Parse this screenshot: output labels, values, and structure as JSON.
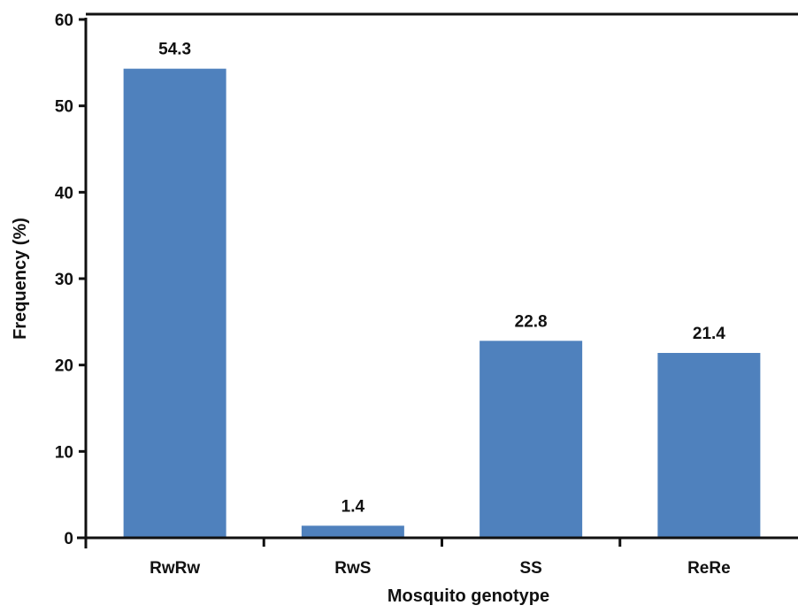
{
  "chart_data": {
    "type": "bar",
    "categories": [
      "RwRw",
      "RwS",
      "SS",
      "ReRe"
    ],
    "values": [
      54.3,
      1.4,
      22.8,
      21.4
    ],
    "data_labels": [
      "54.3",
      "1.4",
      "22.8",
      "21.4"
    ],
    "title": "",
    "xlabel": "Mosquito genotype",
    "ylabel": "Frequency (%)",
    "ylim": [
      0,
      60
    ],
    "yticks": [
      0,
      10,
      20,
      30,
      40,
      50,
      60
    ],
    "grid": false,
    "legend": "none",
    "bar_color": "#4f81bd"
  }
}
